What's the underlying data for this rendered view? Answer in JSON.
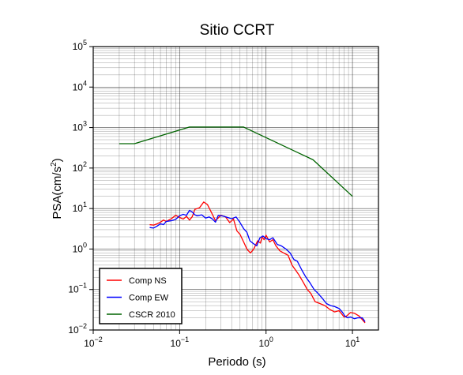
{
  "chart_data": {
    "type": "line",
    "title": "Sitio CCRT",
    "xlabel": "Periodo (s)",
    "ylabel_main": "PSA(cm/s",
    "ylabel_sup": "2",
    "ylabel_close": ")",
    "xscale": "log",
    "yscale": "log",
    "xlim": [
      0.01,
      20
    ],
    "ylim": [
      0.01,
      100000
    ],
    "grid": true,
    "legend_position": "bottom-left",
    "x_ticks": [
      {
        "value": 0.01,
        "base": "10",
        "exp": "−2"
      },
      {
        "value": 0.1,
        "base": "10",
        "exp": "−1"
      },
      {
        "value": 1,
        "base": "10",
        "exp": "0"
      },
      {
        "value": 10,
        "base": "10",
        "exp": "1"
      }
    ],
    "y_ticks": [
      {
        "value": 0.01,
        "base": "10",
        "exp": "−2"
      },
      {
        "value": 0.1,
        "base": "10",
        "exp": "−1"
      },
      {
        "value": 1,
        "base": "10",
        "exp": "0"
      },
      {
        "value": 10,
        "base": "10",
        "exp": "1"
      },
      {
        "value": 100,
        "base": "10",
        "exp": "2"
      },
      {
        "value": 1000,
        "base": "10",
        "exp": "3"
      },
      {
        "value": 10000,
        "base": "10",
        "exp": "4"
      },
      {
        "value": 100000,
        "base": "10",
        "exp": "5"
      }
    ],
    "series": [
      {
        "name": "Comp NS",
        "color": "#ff0000",
        "points": [
          [
            0.045,
            4.0
          ],
          [
            0.05,
            3.9
          ],
          [
            0.055,
            4.2
          ],
          [
            0.06,
            4.6
          ],
          [
            0.065,
            5.2
          ],
          [
            0.07,
            4.8
          ],
          [
            0.08,
            5.6
          ],
          [
            0.09,
            6.8
          ],
          [
            0.1,
            6.0
          ],
          [
            0.11,
            5.5
          ],
          [
            0.12,
            6.4
          ],
          [
            0.13,
            5.2
          ],
          [
            0.14,
            6.3
          ],
          [
            0.15,
            9.5
          ],
          [
            0.17,
            10.5
          ],
          [
            0.19,
            14.5
          ],
          [
            0.21,
            12.5
          ],
          [
            0.23,
            8.5
          ],
          [
            0.26,
            5.0
          ],
          [
            0.3,
            6.8
          ],
          [
            0.34,
            6.2
          ],
          [
            0.38,
            4.5
          ],
          [
            0.42,
            5.5
          ],
          [
            0.46,
            2.8
          ],
          [
            0.5,
            2.3
          ],
          [
            0.55,
            1.5
          ],
          [
            0.6,
            1.0
          ],
          [
            0.66,
            0.8
          ],
          [
            0.72,
            1.0
          ],
          [
            0.8,
            1.6
          ],
          [
            0.86,
            1.4
          ],
          [
            0.9,
            2.0
          ],
          [
            0.95,
            1.7
          ],
          [
            1.0,
            2.2
          ],
          [
            1.1,
            1.5
          ],
          [
            1.2,
            1.7
          ],
          [
            1.3,
            1.2
          ],
          [
            1.45,
            0.9
          ],
          [
            1.6,
            0.8
          ],
          [
            1.8,
            0.7
          ],
          [
            2.0,
            0.4
          ],
          [
            2.2,
            0.3
          ],
          [
            2.4,
            0.23
          ],
          [
            2.7,
            0.15
          ],
          [
            3.0,
            0.1
          ],
          [
            3.3,
            0.08
          ],
          [
            3.7,
            0.05
          ],
          [
            4.2,
            0.045
          ],
          [
            4.8,
            0.04
          ],
          [
            5.5,
            0.032
          ],
          [
            6.2,
            0.028
          ],
          [
            7.0,
            0.03
          ],
          [
            7.5,
            0.025
          ],
          [
            8.0,
            0.021
          ],
          [
            8.5,
            0.022
          ],
          [
            9.5,
            0.027
          ],
          [
            10.5,
            0.026
          ],
          [
            12.0,
            0.022
          ],
          [
            14.0,
            0.015
          ]
        ]
      },
      {
        "name": "Comp EW",
        "color": "#0000ff",
        "points": [
          [
            0.045,
            3.4
          ],
          [
            0.05,
            3.3
          ],
          [
            0.055,
            3.7
          ],
          [
            0.06,
            4.2
          ],
          [
            0.065,
            4.0
          ],
          [
            0.07,
            4.8
          ],
          [
            0.08,
            5.0
          ],
          [
            0.09,
            5.4
          ],
          [
            0.1,
            6.6
          ],
          [
            0.11,
            7.2
          ],
          [
            0.12,
            6.8
          ],
          [
            0.13,
            9.0
          ],
          [
            0.14,
            8.2
          ],
          [
            0.15,
            7.0
          ],
          [
            0.16,
            6.6
          ],
          [
            0.18,
            7.0
          ],
          [
            0.2,
            5.8
          ],
          [
            0.22,
            6.2
          ],
          [
            0.24,
            5.5
          ],
          [
            0.26,
            4.6
          ],
          [
            0.28,
            6.8
          ],
          [
            0.32,
            6.5
          ],
          [
            0.36,
            6.0
          ],
          [
            0.4,
            5.6
          ],
          [
            0.45,
            6.2
          ],
          [
            0.5,
            4.5
          ],
          [
            0.55,
            3.2
          ],
          [
            0.6,
            2.6
          ],
          [
            0.65,
            1.6
          ],
          [
            0.7,
            1.4
          ],
          [
            0.78,
            1.2
          ],
          [
            0.85,
            1.9
          ],
          [
            0.92,
            2.1
          ],
          [
            1.0,
            1.8
          ],
          [
            1.1,
            1.7
          ],
          [
            1.2,
            1.9
          ],
          [
            1.35,
            1.3
          ],
          [
            1.5,
            1.2
          ],
          [
            1.7,
            1.0
          ],
          [
            1.9,
            0.8
          ],
          [
            2.1,
            0.55
          ],
          [
            2.3,
            0.5
          ],
          [
            2.6,
            0.3
          ],
          [
            2.9,
            0.2
          ],
          [
            3.2,
            0.15
          ],
          [
            3.6,
            0.1
          ],
          [
            4.0,
            0.08
          ],
          [
            4.5,
            0.06
          ],
          [
            5.0,
            0.045
          ],
          [
            5.6,
            0.04
          ],
          [
            6.2,
            0.038
          ],
          [
            7.0,
            0.034
          ],
          [
            7.6,
            0.028
          ],
          [
            8.2,
            0.022
          ],
          [
            8.8,
            0.02
          ],
          [
            9.5,
            0.021
          ],
          [
            10.5,
            0.019
          ],
          [
            11.5,
            0.02
          ],
          [
            13.0,
            0.02
          ],
          [
            14.0,
            0.016
          ]
        ]
      },
      {
        "name": "CSCR 2010",
        "color": "#006400",
        "points": [
          [
            0.02,
            400
          ],
          [
            0.03,
            400
          ],
          [
            0.13,
            1030
          ],
          [
            0.55,
            1030
          ],
          [
            3.5,
            160
          ],
          [
            10.0,
            20
          ]
        ]
      }
    ]
  }
}
